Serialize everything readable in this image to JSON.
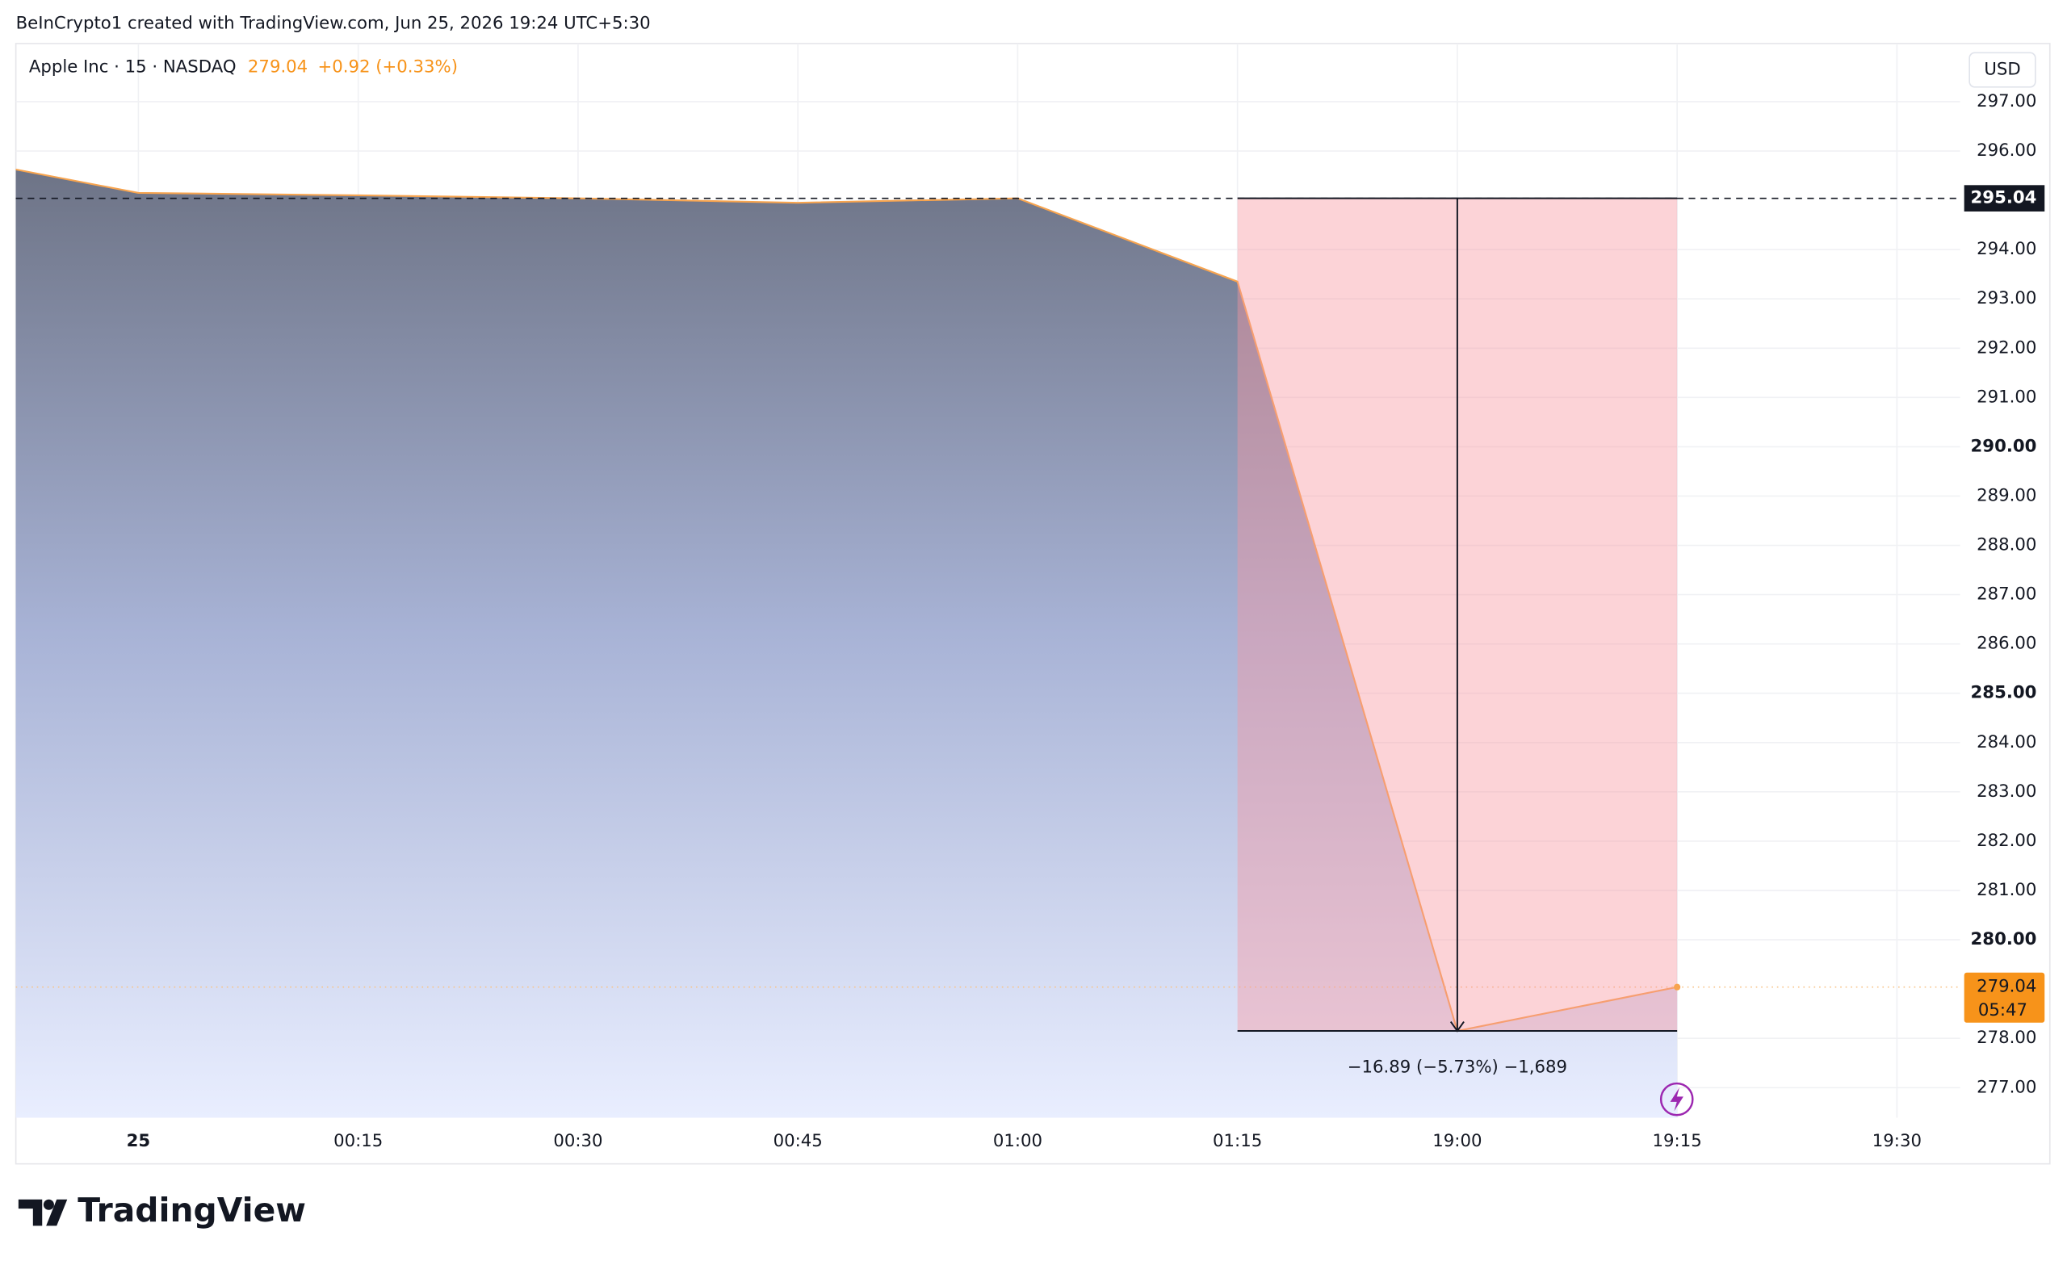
{
  "header": "BeInCrypto1 created with TradingView.com, Jun 25, 2026 19:24 UTC+5:30",
  "chart_data": {
    "type": "area",
    "symbol": "Apple Inc · 15 · NASDAQ",
    "last_price": 279.04,
    "change": "+0.92 (+0.33%)",
    "currency": "USD",
    "countdown": "05:47",
    "categories": [
      null,
      "25",
      "00:15",
      "00:30",
      "00:45",
      "01:00",
      "01:15",
      "19:00",
      "19:15",
      "19:30"
    ],
    "values": [
      296.0,
      295.15,
      295.1,
      295.04,
      294.95,
      295.04,
      293.35,
      278.15,
      279.04,
      null
    ],
    "color": "#f7a44f",
    "ylim": [
      276.39,
      298.18
    ],
    "yticks": [
      {
        "value": 277,
        "label": "277.00"
      },
      {
        "value": 278,
        "label": "278.00"
      },
      {
        "value": 280,
        "label": "280.00"
      },
      {
        "value": 281,
        "label": "281.00"
      },
      {
        "value": 282,
        "label": "282.00"
      },
      {
        "value": 283,
        "label": "283.00"
      },
      {
        "value": 284,
        "label": "284.00"
      },
      {
        "value": 285,
        "label": "285.00"
      },
      {
        "value": 286,
        "label": "286.00"
      },
      {
        "value": 287,
        "label": "287.00"
      },
      {
        "value": 288,
        "label": "288.00"
      },
      {
        "value": 289,
        "label": "289.00"
      },
      {
        "value": 290,
        "label": "290.00"
      },
      {
        "value": 291,
        "label": "291.00"
      },
      {
        "value": 292,
        "label": "292.00"
      },
      {
        "value": 293,
        "label": "293.00"
      },
      {
        "value": 294,
        "label": "294.00"
      },
      {
        "value": 296,
        "label": "296.00"
      },
      {
        "value": 297,
        "label": "297.00"
      }
    ],
    "hline": 295.04,
    "measure": {
      "from": "01:15",
      "to": "19:15",
      "start": 295.04,
      "end": 278.15,
      "label": "−16.89 (−5.73%) −1,689"
    },
    "grid": true
  },
  "footer": {
    "logo": "TradingView"
  }
}
